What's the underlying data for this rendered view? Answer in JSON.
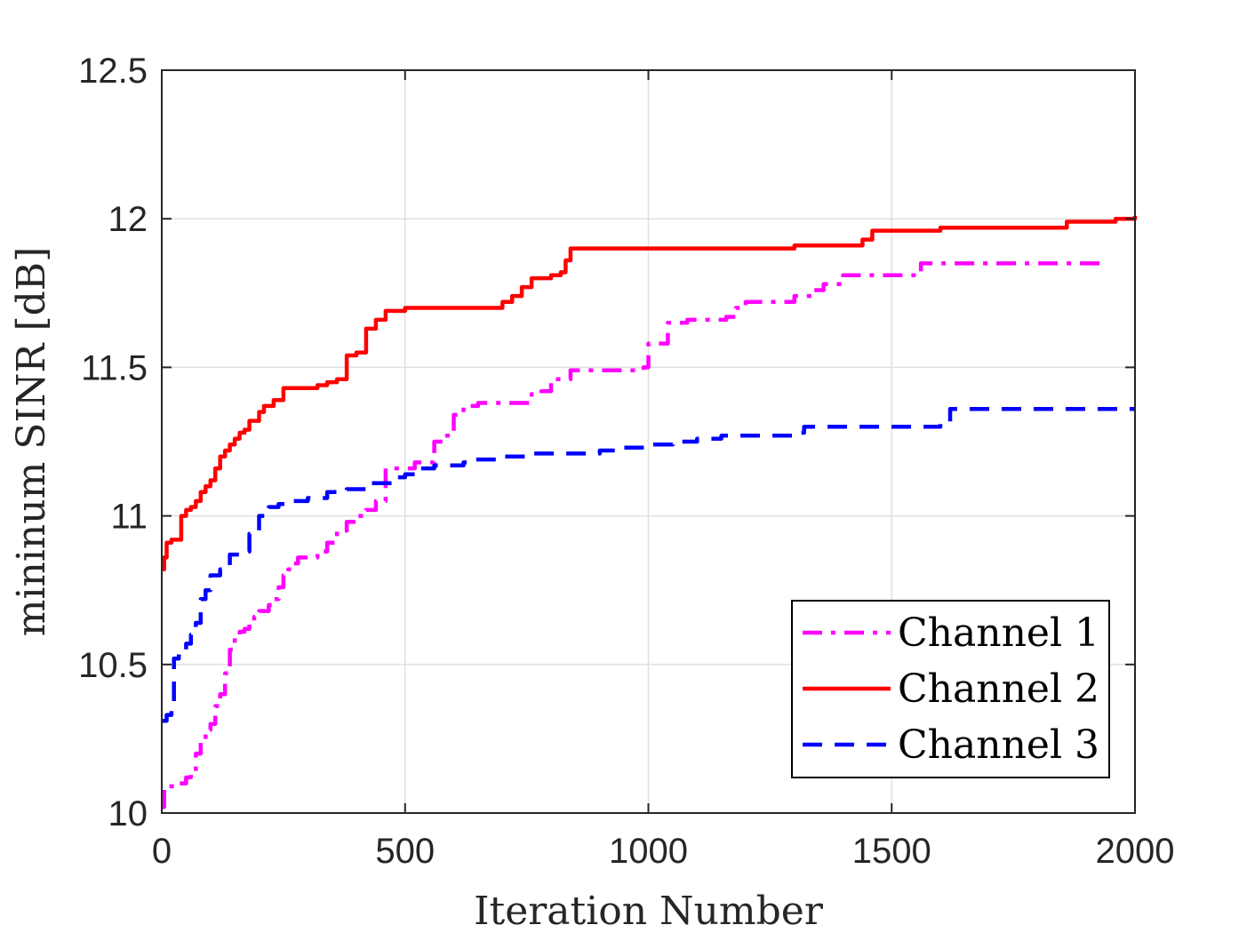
{
  "chart_data": {
    "type": "line",
    "title": "",
    "xlabel": "Iteration Number",
    "ylabel": "mininum SINR [dB]",
    "xlim": [
      0,
      2000
    ],
    "ylim": [
      10,
      12.5
    ],
    "xticks": [
      "0",
      "500",
      "1000",
      "1500",
      "2000"
    ],
    "yticks": [
      "10",
      "10.5",
      "11",
      "11.5",
      "12",
      "12.5"
    ],
    "grid": true,
    "legend_position": "bottom-right",
    "series": [
      {
        "name": "Channel 1",
        "color": "#ff00ff",
        "style": "dash-dot",
        "x": [
          0,
          5,
          10,
          30,
          50,
          60,
          70,
          80,
          90,
          100,
          110,
          120,
          130,
          140,
          150,
          160,
          170,
          180,
          190,
          200,
          210,
          220,
          230,
          240,
          250,
          260,
          270,
          280,
          300,
          320,
          340,
          360,
          380,
          400,
          420,
          440,
          460,
          480,
          500,
          520,
          560,
          580,
          600,
          620,
          650,
          700,
          760,
          780,
          800,
          840,
          880,
          920,
          960,
          990,
          1000,
          1020,
          1040,
          1080,
          1120,
          1160,
          1180,
          1200,
          1260,
          1300,
          1340,
          1360,
          1400,
          1440,
          1500,
          1540,
          1560,
          1620,
          1700,
          1800,
          1940
        ],
        "y": [
          10.02,
          10.08,
          10.09,
          10.1,
          10.12,
          10.14,
          10.2,
          10.24,
          10.28,
          10.3,
          10.36,
          10.4,
          10.47,
          10.55,
          10.6,
          10.61,
          10.62,
          10.64,
          10.66,
          10.68,
          10.68,
          10.7,
          10.72,
          10.76,
          10.8,
          10.82,
          10.84,
          10.86,
          10.86,
          10.88,
          10.91,
          10.95,
          10.98,
          11.0,
          11.02,
          11.05,
          11.16,
          11.16,
          11.16,
          11.18,
          11.25,
          11.27,
          11.34,
          11.37,
          11.38,
          11.38,
          11.41,
          11.42,
          11.46,
          11.49,
          11.49,
          11.49,
          11.49,
          11.5,
          11.58,
          11.58,
          11.65,
          11.66,
          11.66,
          11.67,
          11.7,
          11.72,
          11.72,
          11.74,
          11.76,
          11.78,
          11.81,
          11.81,
          11.81,
          11.81,
          11.85,
          11.85,
          11.85,
          11.85,
          11.85
        ]
      },
      {
        "name": "Channel 2",
        "color": "#ff0000",
        "style": "solid",
        "x": [
          0,
          5,
          10,
          20,
          40,
          50,
          60,
          70,
          80,
          90,
          100,
          110,
          120,
          130,
          140,
          150,
          160,
          170,
          180,
          200,
          210,
          230,
          250,
          280,
          300,
          320,
          340,
          360,
          380,
          400,
          420,
          440,
          460,
          500,
          550,
          600,
          650,
          680,
          700,
          720,
          740,
          760,
          800,
          820,
          830,
          840,
          860,
          900,
          1000,
          1100,
          1200,
          1280,
          1300,
          1400,
          1440,
          1460,
          1500,
          1550,
          1600,
          1650,
          1700,
          1800,
          1860,
          1900,
          1960,
          2000
        ],
        "y": [
          10.82,
          10.86,
          10.91,
          10.92,
          11.0,
          11.02,
          11.03,
          11.05,
          11.08,
          11.1,
          11.12,
          11.16,
          11.2,
          11.22,
          11.24,
          11.26,
          11.28,
          11.29,
          11.32,
          11.35,
          11.37,
          11.39,
          11.43,
          11.43,
          11.43,
          11.44,
          11.45,
          11.46,
          11.54,
          11.55,
          11.63,
          11.66,
          11.69,
          11.7,
          11.7,
          11.7,
          11.7,
          11.7,
          11.72,
          11.74,
          11.77,
          11.8,
          11.81,
          11.82,
          11.86,
          11.9,
          11.9,
          11.9,
          11.9,
          11.9,
          11.9,
          11.9,
          11.91,
          11.91,
          11.93,
          11.96,
          11.96,
          11.96,
          11.97,
          11.97,
          11.97,
          11.97,
          11.99,
          11.99,
          12.0,
          12.01
        ]
      },
      {
        "name": "Channel 3",
        "color": "#0000ff",
        "style": "dashed",
        "x": [
          0,
          10,
          20,
          25,
          35,
          50,
          60,
          70,
          80,
          90,
          100,
          120,
          140,
          160,
          180,
          200,
          220,
          240,
          260,
          300,
          340,
          380,
          420,
          480,
          500,
          520,
          560,
          600,
          620,
          640,
          700,
          760,
          800,
          860,
          900,
          950,
          1000,
          1050,
          1100,
          1150,
          1200,
          1300,
          1320,
          1400,
          1500,
          1600,
          1620,
          1700,
          1800,
          1900,
          2000
        ],
        "y": [
          10.31,
          10.33,
          10.35,
          10.52,
          10.55,
          10.57,
          10.6,
          10.64,
          10.72,
          10.75,
          10.8,
          10.82,
          10.87,
          10.88,
          10.94,
          11.0,
          11.03,
          11.04,
          11.05,
          11.06,
          11.08,
          11.09,
          11.11,
          11.13,
          11.14,
          11.16,
          11.17,
          11.17,
          11.18,
          11.19,
          11.2,
          11.21,
          11.21,
          11.21,
          11.22,
          11.23,
          11.24,
          11.25,
          11.26,
          11.27,
          11.27,
          11.28,
          11.3,
          11.3,
          11.3,
          11.31,
          11.36,
          11.36,
          11.36,
          11.36,
          11.36
        ]
      }
    ]
  }
}
